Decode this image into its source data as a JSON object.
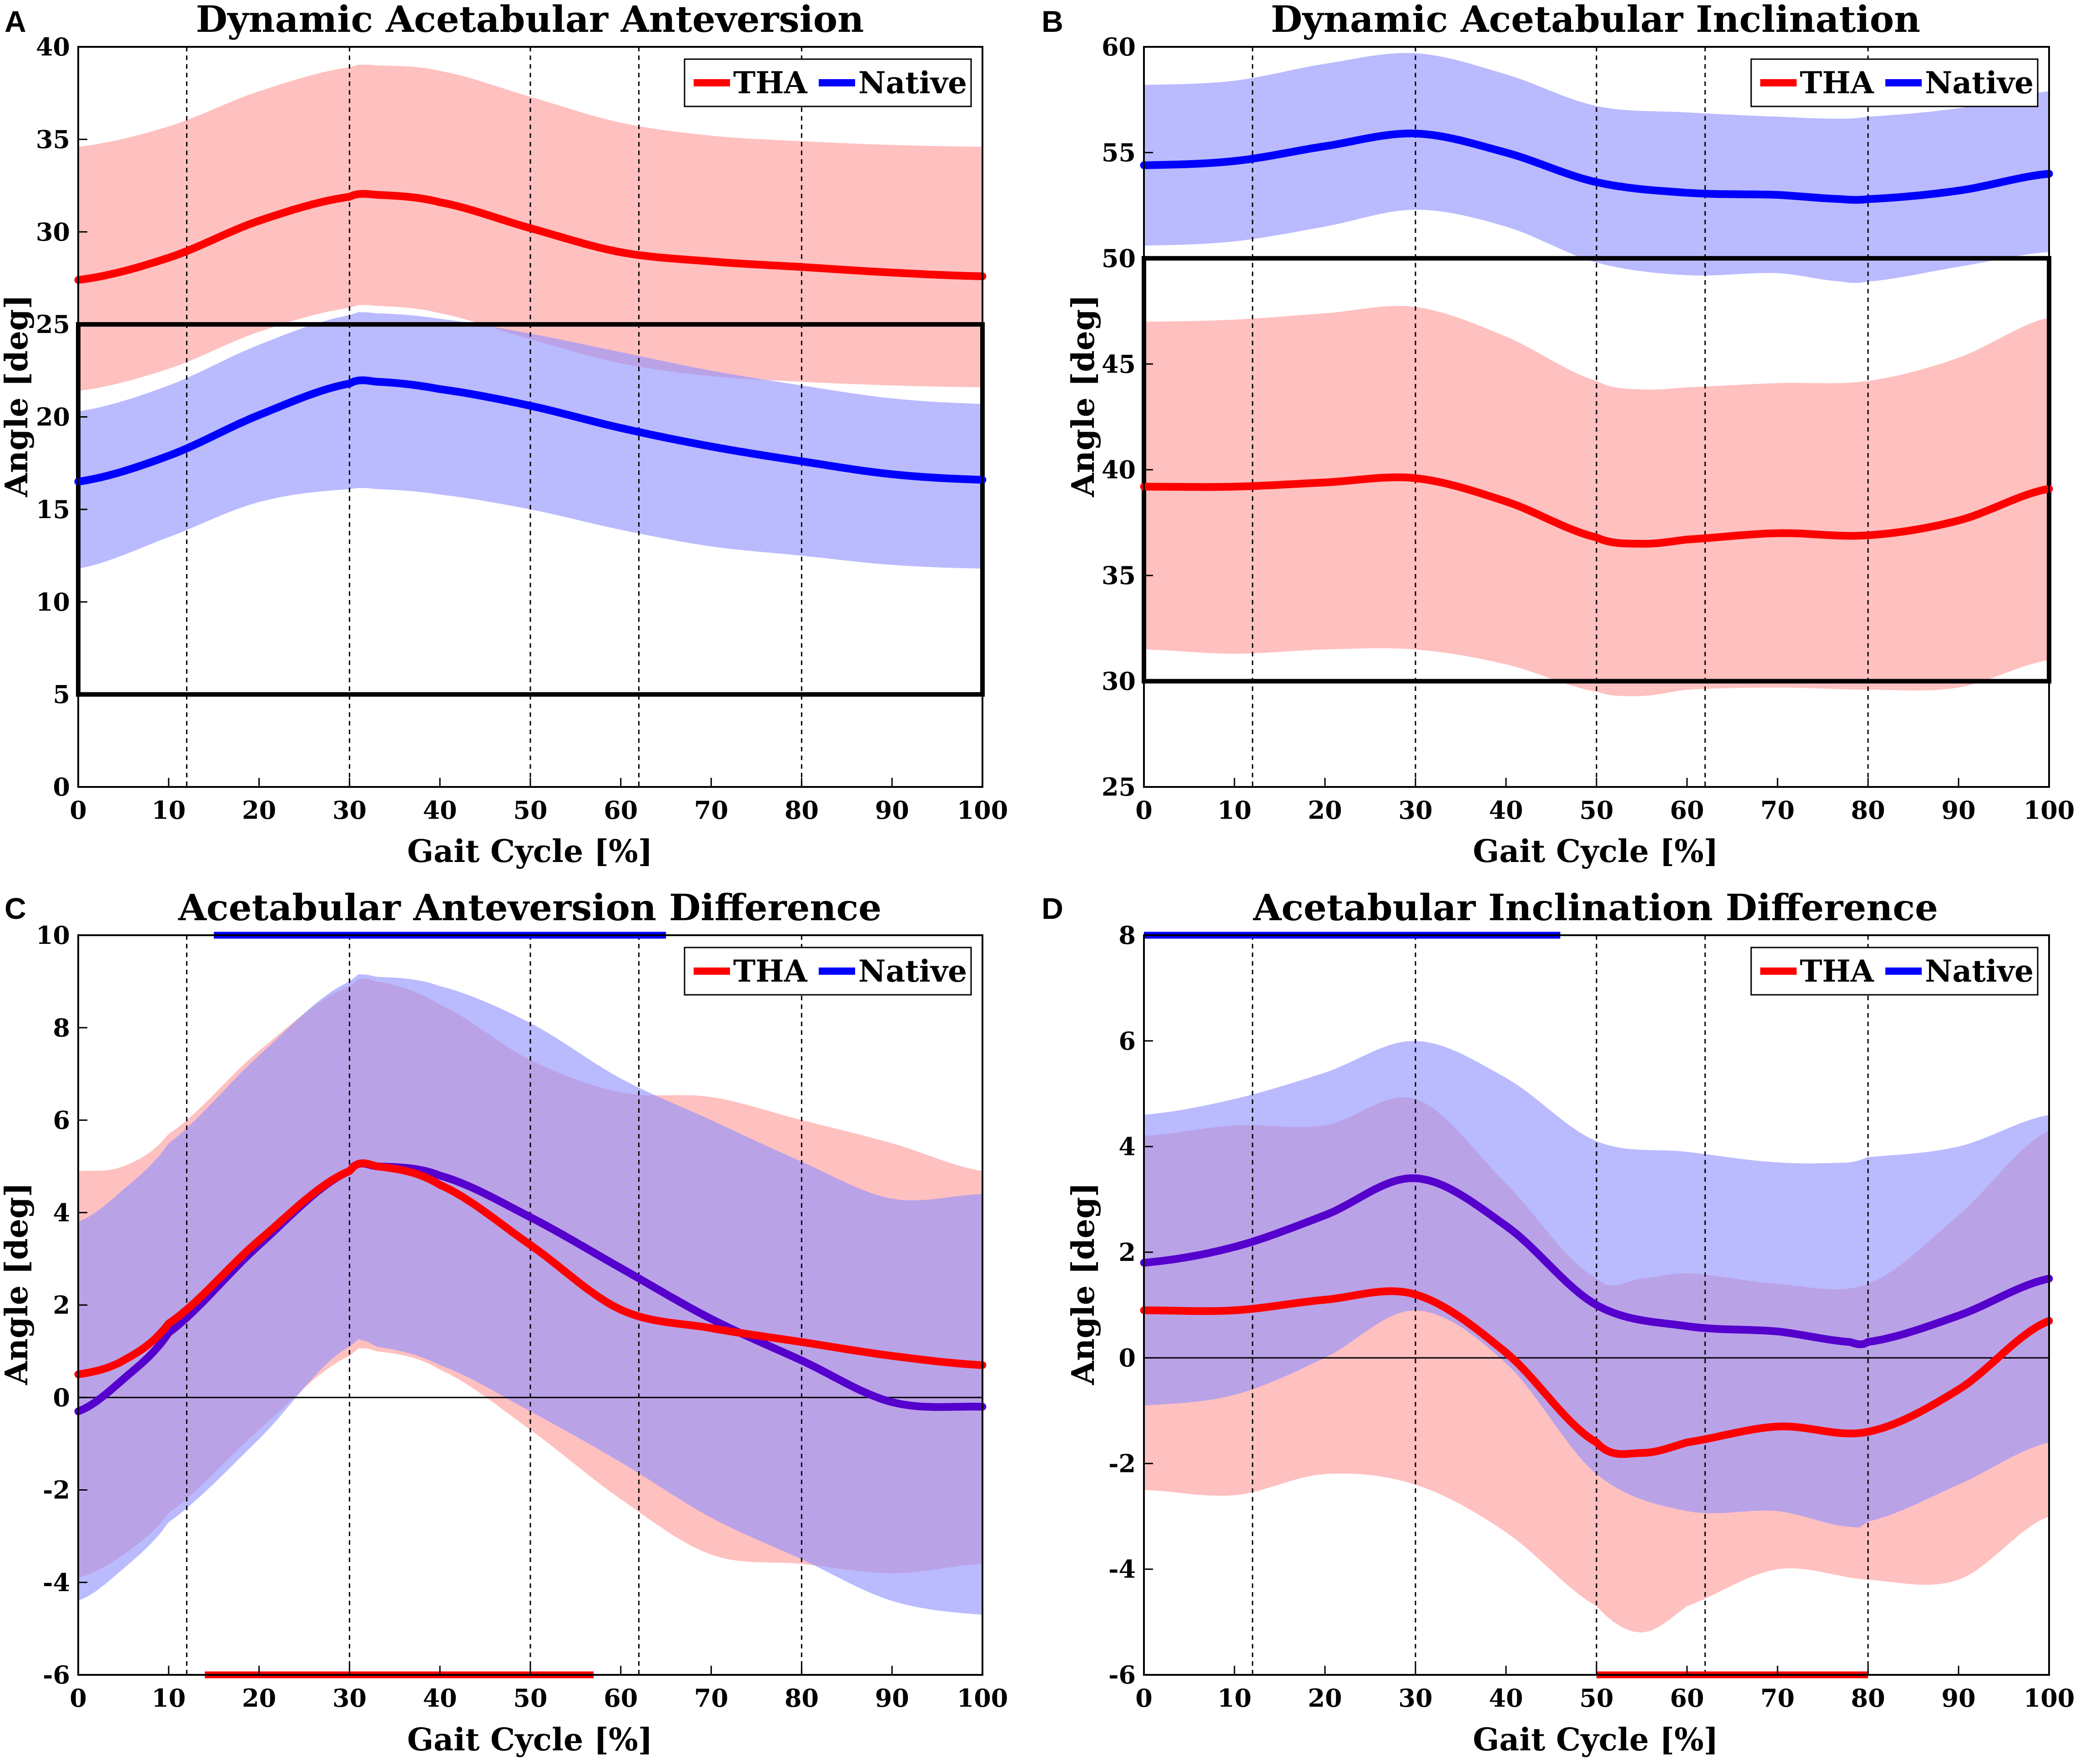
{
  "colors": {
    "tha": "#ff0000",
    "native": "#0000ff",
    "tha_band": "#ff9a9a",
    "native_band": "#8f8fff",
    "overlap_line": "#5500cc"
  },
  "chart_data": [
    {
      "panel": "A",
      "type": "line",
      "title": "Dynamic Acetabular Anteversion",
      "xlabel": "Gait Cycle [%]",
      "ylabel": "Angle [deg]",
      "xlim": [
        0,
        100
      ],
      "ylim": [
        0,
        40
      ],
      "xticks": [
        0,
        10,
        20,
        30,
        40,
        50,
        60,
        70,
        80,
        90,
        100
      ],
      "yticks": [
        0,
        5,
        10,
        15,
        20,
        25,
        30,
        35,
        40
      ],
      "vlines": [
        12,
        30,
        50,
        62,
        80
      ],
      "legend": {
        "position": "top-right",
        "entries": [
          "THA",
          "Native"
        ]
      },
      "safe_zone": {
        "x": [
          0,
          100
        ],
        "y": [
          5,
          25
        ]
      },
      "series": [
        {
          "name": "THA",
          "color": "tha",
          "x": [
            0,
            10,
            20,
            30,
            33,
            40,
            50,
            60,
            70,
            80,
            90,
            100
          ],
          "mean": [
            27.4,
            28.6,
            30.6,
            31.9,
            32.0,
            31.6,
            30.2,
            28.9,
            28.4,
            28.1,
            27.8,
            27.6
          ],
          "upper": [
            34.6,
            35.7,
            37.6,
            38.9,
            39.0,
            38.7,
            37.3,
            35.9,
            35.2,
            34.9,
            34.7,
            34.6
          ],
          "lower": [
            21.4,
            22.6,
            24.6,
            25.9,
            26.0,
            25.6,
            24.2,
            22.9,
            22.2,
            21.9,
            21.7,
            21.6
          ]
        },
        {
          "name": "Native",
          "color": "native",
          "x": [
            0,
            10,
            20,
            30,
            33,
            40,
            50,
            60,
            70,
            80,
            90,
            100
          ],
          "mean": [
            16.5,
            17.9,
            20.1,
            21.8,
            21.9,
            21.5,
            20.6,
            19.4,
            18.4,
            17.6,
            16.9,
            16.6
          ],
          "upper": [
            20.3,
            21.7,
            23.9,
            25.5,
            25.6,
            25.3,
            24.5,
            23.5,
            22.5,
            21.7,
            21.0,
            20.7
          ],
          "lower": [
            11.8,
            13.5,
            15.4,
            16.1,
            16.1,
            15.8,
            15.0,
            13.9,
            13.0,
            12.5,
            12.0,
            11.8
          ]
        }
      ]
    },
    {
      "panel": "B",
      "type": "line",
      "title": "Dynamic Acetabular Inclination",
      "xlabel": "Gait Cycle [%]",
      "ylabel": "Angle [deg]",
      "xlim": [
        0,
        100
      ],
      "ylim": [
        25,
        60
      ],
      "xticks": [
        0,
        10,
        20,
        30,
        40,
        50,
        60,
        70,
        80,
        90,
        100
      ],
      "yticks": [
        25,
        30,
        35,
        40,
        45,
        50,
        55,
        60
      ],
      "vlines": [
        12,
        30,
        50,
        62,
        80
      ],
      "legend": {
        "position": "top-right",
        "entries": [
          "THA",
          "Native"
        ]
      },
      "safe_zone": {
        "x": [
          0,
          100
        ],
        "y": [
          30,
          50
        ]
      },
      "series": [
        {
          "name": "THA",
          "color": "tha",
          "x": [
            0,
            10,
            20,
            30,
            40,
            50,
            55,
            60,
            70,
            80,
            90,
            100
          ],
          "mean": [
            39.2,
            39.2,
            39.4,
            39.6,
            38.5,
            36.8,
            36.5,
            36.7,
            37.0,
            36.9,
            37.6,
            39.1
          ],
          "upper": [
            47.0,
            47.1,
            47.4,
            47.7,
            46.3,
            44.2,
            43.8,
            43.9,
            44.1,
            44.2,
            45.3,
            47.2
          ],
          "lower": [
            31.5,
            31.3,
            31.5,
            31.5,
            30.8,
            29.5,
            29.3,
            29.6,
            29.7,
            29.6,
            29.7,
            31.0
          ]
        },
        {
          "name": "Native",
          "color": "native",
          "x": [
            0,
            10,
            20,
            30,
            40,
            50,
            60,
            70,
            77,
            80,
            90,
            100
          ],
          "mean": [
            54.4,
            54.6,
            55.3,
            55.9,
            55.0,
            53.6,
            53.1,
            53.0,
            52.8,
            52.8,
            53.2,
            54.0
          ],
          "upper": [
            58.2,
            58.4,
            59.2,
            59.7,
            58.7,
            57.2,
            56.9,
            56.7,
            56.6,
            56.7,
            57.1,
            57.9
          ],
          "lower": [
            50.6,
            50.8,
            51.5,
            52.3,
            51.5,
            49.8,
            49.2,
            49.3,
            48.9,
            48.9,
            49.6,
            50.3
          ]
        }
      ]
    },
    {
      "panel": "C",
      "type": "line",
      "title": "Acetabular Anteversion Difference",
      "xlabel": "Gait Cycle [%]",
      "ylabel": "Angle [deg]",
      "xlim": [
        0,
        100
      ],
      "ylim": [
        -6,
        10
      ],
      "xticks": [
        0,
        10,
        20,
        30,
        40,
        50,
        60,
        70,
        80,
        90,
        100
      ],
      "yticks": [
        -6,
        -4,
        -2,
        0,
        2,
        4,
        6,
        8,
        10
      ],
      "vlines": [
        12,
        30,
        50,
        62,
        80
      ],
      "zero_line": true,
      "legend": {
        "position": "top-right",
        "entries": [
          "THA",
          "Native"
        ]
      },
      "significance_bars": [
        {
          "series": "Native",
          "x": [
            15,
            65
          ],
          "y": 10
        },
        {
          "series": "THA",
          "x": [
            14,
            57
          ],
          "y": -6
        }
      ],
      "series": [
        {
          "name": "THA",
          "color": "tha",
          "x": [
            0,
            5,
            10,
            20,
            30,
            33,
            40,
            50,
            60,
            70,
            80,
            90,
            100
          ],
          "mean": [
            0.5,
            0.8,
            1.6,
            3.4,
            4.9,
            5.0,
            4.6,
            3.3,
            1.9,
            1.5,
            1.2,
            0.9,
            0.7
          ],
          "upper": [
            4.9,
            5.0,
            5.7,
            7.5,
            8.9,
            9.0,
            8.5,
            7.3,
            6.6,
            6.5,
            6.0,
            5.5,
            4.9
          ],
          "lower": [
            -3.9,
            -3.4,
            -2.5,
            -0.7,
            0.9,
            1.0,
            0.6,
            -0.7,
            -2.2,
            -3.4,
            -3.6,
            -3.8,
            -3.6
          ]
        },
        {
          "name": "Native",
          "color": "native",
          "x": [
            0,
            5,
            10,
            20,
            30,
            33,
            40,
            50,
            60,
            70,
            80,
            90,
            100
          ],
          "mean": [
            -0.3,
            0.4,
            1.4,
            3.3,
            4.9,
            5.0,
            4.8,
            3.9,
            2.8,
            1.7,
            0.8,
            -0.1,
            -0.2
          ],
          "upper": [
            3.8,
            4.5,
            5.5,
            7.4,
            9.0,
            9.1,
            8.9,
            8.1,
            6.9,
            6.0,
            5.1,
            4.3,
            4.4
          ],
          "lower": [
            -4.4,
            -3.7,
            -2.7,
            -0.9,
            1.1,
            1.1,
            0.7,
            -0.3,
            -1.4,
            -2.6,
            -3.5,
            -4.4,
            -4.7
          ]
        }
      ]
    },
    {
      "panel": "D",
      "type": "line",
      "title": "Acetabular Inclination Difference",
      "xlabel": "Gait Cycle [%]",
      "ylabel": "Angle [deg]",
      "xlim": [
        0,
        100
      ],
      "ylim": [
        -6,
        8
      ],
      "xticks": [
        0,
        10,
        20,
        30,
        40,
        50,
        60,
        70,
        80,
        90,
        100
      ],
      "yticks": [
        -6,
        -4,
        -2,
        0,
        2,
        4,
        6,
        8
      ],
      "vlines": [
        12,
        30,
        50,
        62,
        80
      ],
      "zero_line": true,
      "legend": {
        "position": "top-right",
        "entries": [
          "THA",
          "Native"
        ]
      },
      "significance_bars": [
        {
          "series": "Native",
          "x": [
            0,
            46
          ],
          "y": 8
        },
        {
          "series": "THA",
          "x": [
            50,
            80
          ],
          "y": -6
        }
      ],
      "series": [
        {
          "name": "THA",
          "color": "tha",
          "x": [
            0,
            10,
            20,
            30,
            40,
            50,
            55,
            60,
            70,
            80,
            90,
            100
          ],
          "mean": [
            0.9,
            0.9,
            1.1,
            1.2,
            0.1,
            -1.6,
            -1.8,
            -1.6,
            -1.3,
            -1.4,
            -0.6,
            0.7
          ],
          "upper": [
            4.2,
            4.4,
            4.4,
            4.9,
            3.3,
            1.5,
            1.5,
            1.6,
            1.4,
            1.4,
            2.7,
            4.3
          ],
          "lower": [
            -2.5,
            -2.6,
            -2.2,
            -2.4,
            -3.3,
            -4.7,
            -5.2,
            -4.7,
            -4.0,
            -4.2,
            -4.2,
            -3.0
          ]
        },
        {
          "name": "Native",
          "color": "native",
          "x": [
            0,
            10,
            20,
            30,
            40,
            50,
            60,
            70,
            78,
            80,
            90,
            100
          ],
          "mean": [
            1.8,
            2.1,
            2.7,
            3.4,
            2.5,
            1.0,
            0.6,
            0.5,
            0.3,
            0.3,
            0.8,
            1.5
          ],
          "upper": [
            4.6,
            4.9,
            5.4,
            6.0,
            5.3,
            4.1,
            3.9,
            3.7,
            3.7,
            3.8,
            4.0,
            4.6
          ],
          "lower": [
            -0.9,
            -0.7,
            0.0,
            0.9,
            -0.1,
            -2.2,
            -2.9,
            -2.9,
            -3.2,
            -3.1,
            -2.4,
            -1.6
          ]
        }
      ]
    }
  ]
}
